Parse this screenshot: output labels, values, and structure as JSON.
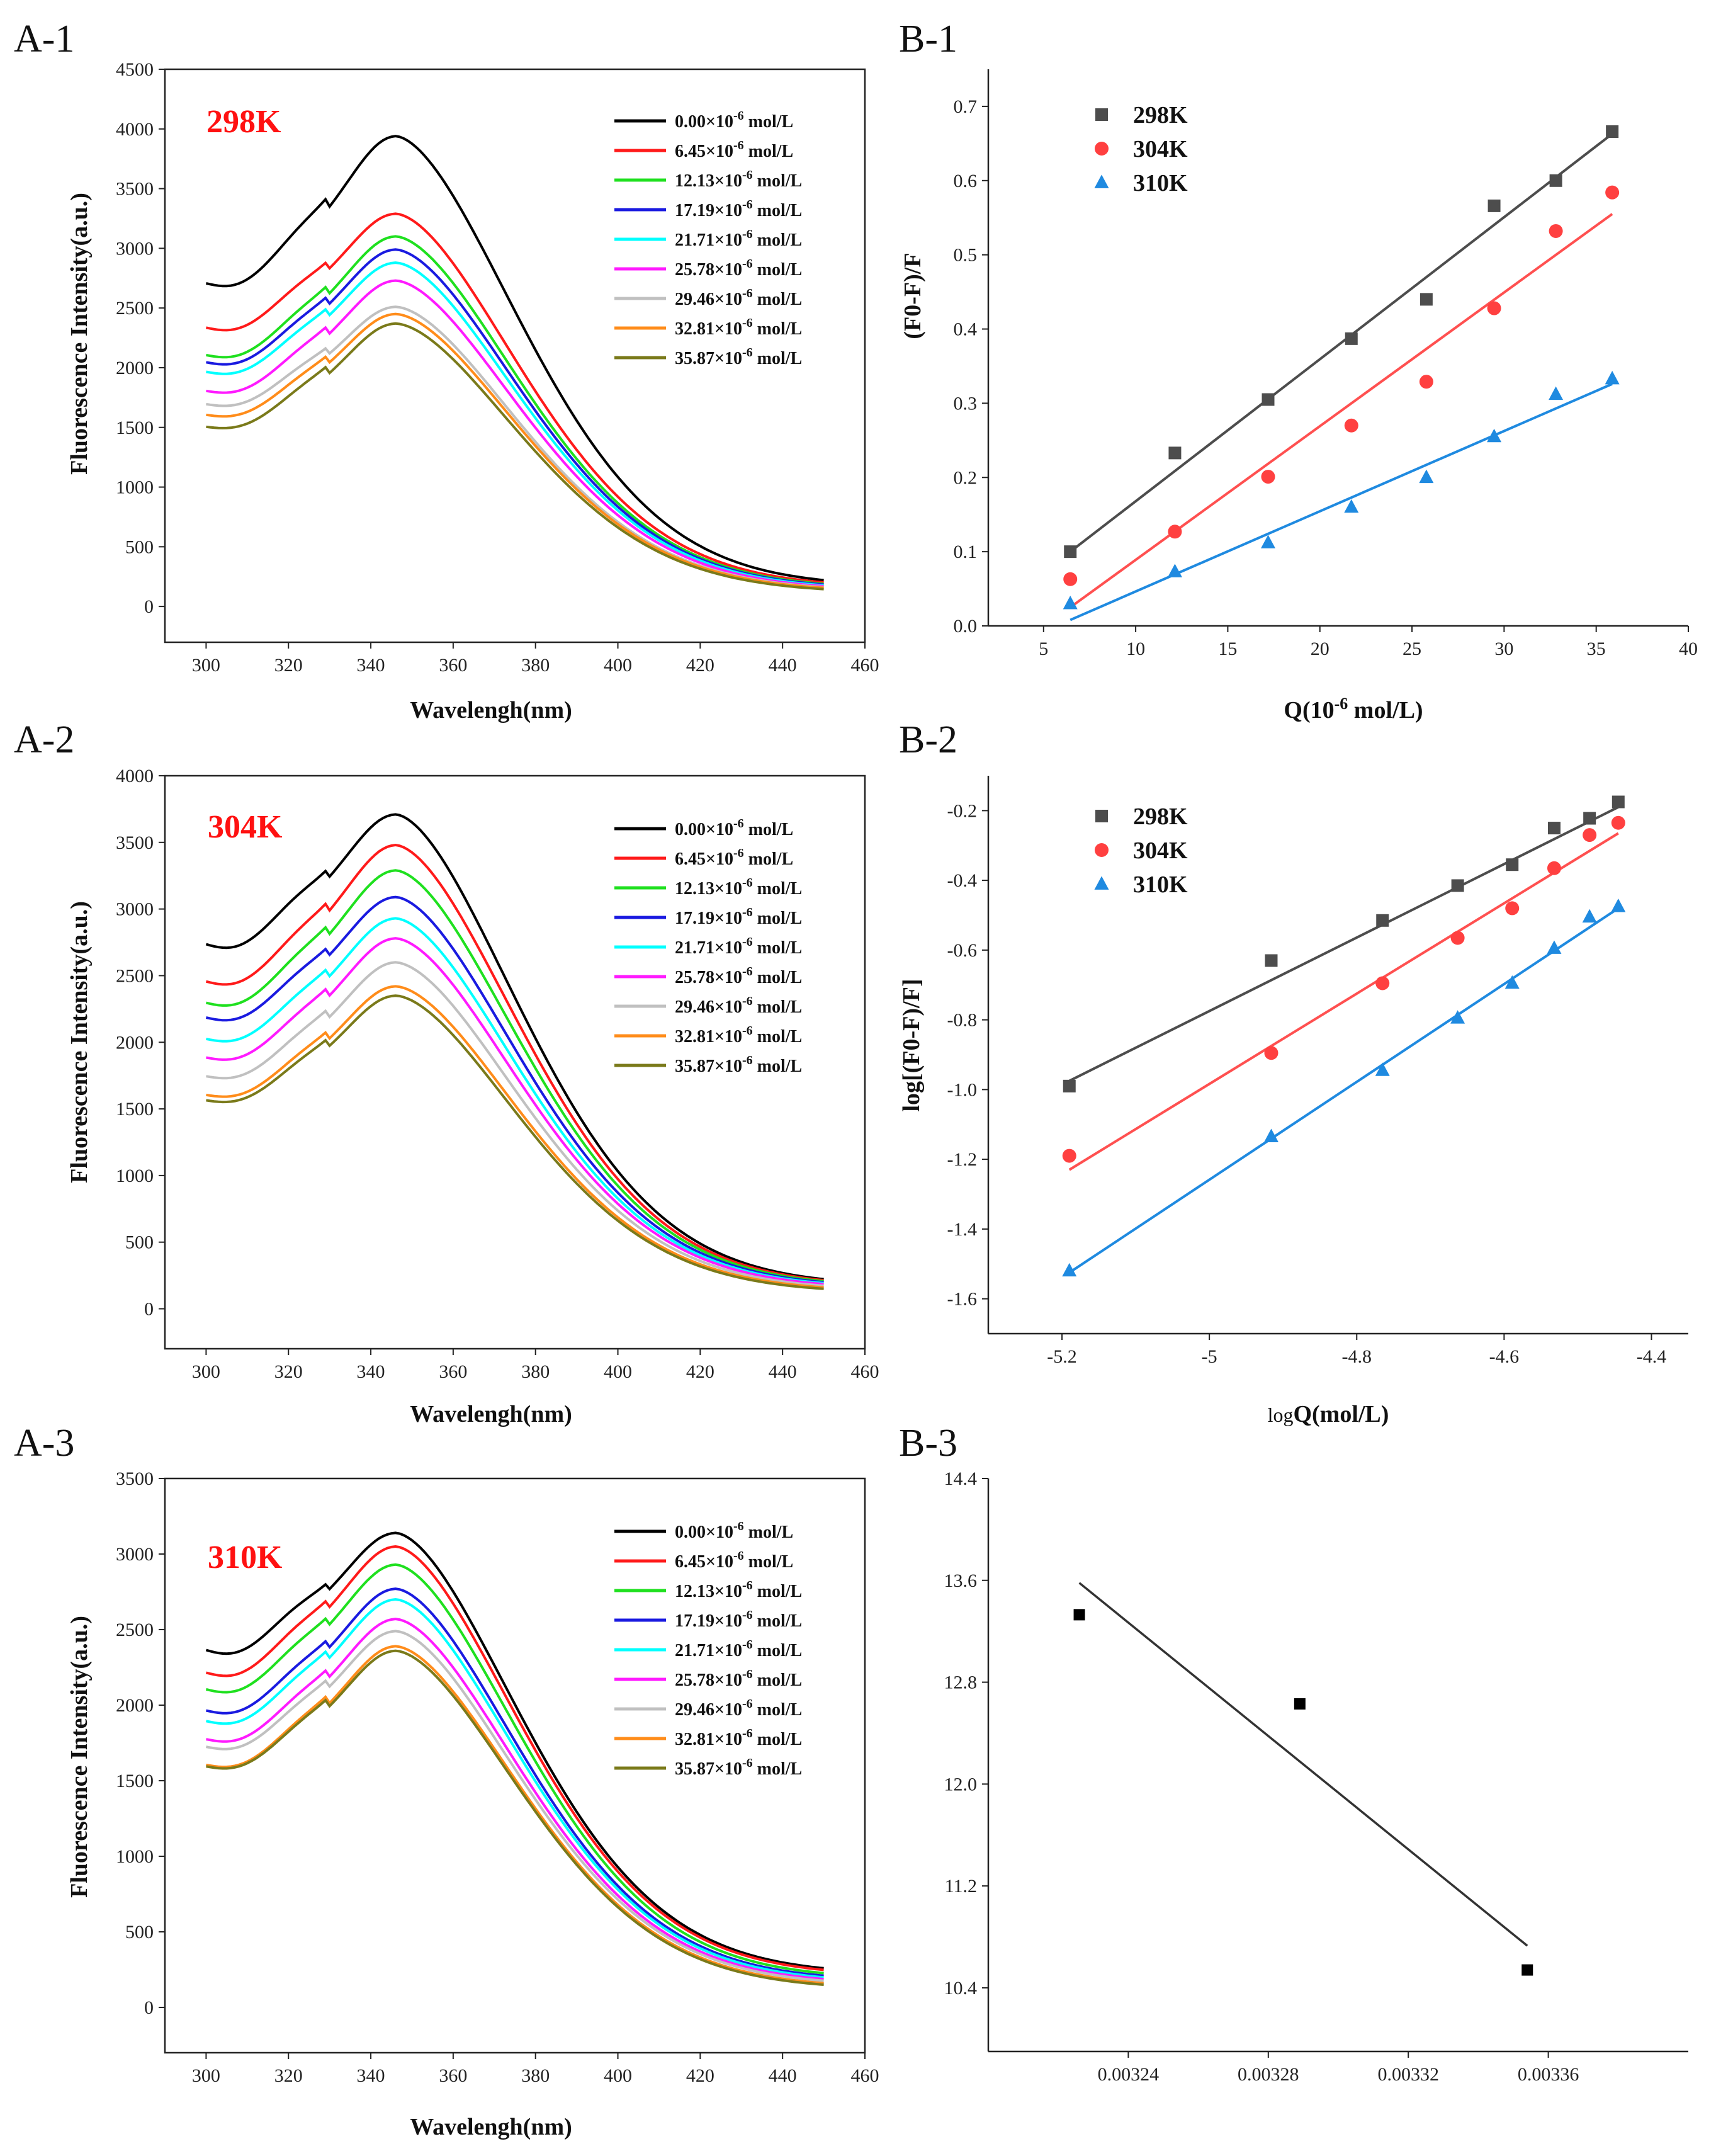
{
  "colors": {
    "conc": [
      "#000000",
      "#ff1a1a",
      "#1fe01f",
      "#1a1ae0",
      "#00ffff",
      "#ff1aff",
      "#c0c0c0",
      "#ff8c1a",
      "#7a7a1a"
    ],
    "temps": [
      "#4d4d4d",
      "#ff4040",
      "#1f8ae0"
    ],
    "fit": [
      "#4d4d4d",
      "#ff5050",
      "#1f8ae0"
    ],
    "b3": "#333333",
    "temp_label": "#ff1111"
  },
  "concentration_legend": [
    "0.00×10",
    "6.45×10",
    "12.13×10",
    "17.19×10",
    "21.71×10",
    "25.78×10",
    "29.46×10",
    "32.81×10",
    "35.87×10"
  ],
  "legend_exponent": "-6",
  "legend_unit": " mol/L",
  "temperature_legend": [
    "298K",
    "304K",
    "310K"
  ],
  "chart_data": [
    {
      "id": "A-1",
      "panel_label": "A-1",
      "type": "line",
      "temperature_label": "298K",
      "xlabel": "Wavelengh(nm)",
      "ylabel": "Fluorescence Intensity(a.u.)",
      "xlim": [
        290,
        460
      ],
      "ylim": [
        -300,
        4500
      ],
      "xticks": [
        300,
        320,
        340,
        360,
        380,
        400,
        420,
        440,
        460
      ],
      "yticks": [
        0,
        500,
        1000,
        1500,
        2000,
        2500,
        3000,
        3500,
        4000,
        4500
      ],
      "x_range": [
        300,
        450
      ],
      "series_start": [
        2700,
        2330,
        2100,
        2040,
        1960,
        1800,
        1690,
        1600,
        1500
      ],
      "series_peak": [
        3940,
        3290,
        3100,
        2990,
        2880,
        2730,
        2510,
        2450,
        2370
      ],
      "series_end": [
        170,
        160,
        150,
        145,
        140,
        135,
        130,
        125,
        115
      ]
    },
    {
      "id": "A-2",
      "panel_label": "A-2",
      "type": "line",
      "temperature_label": "304K",
      "xlabel": "Wavelengh(nm)",
      "ylabel": "Fluorescence Intensity(a.u.)",
      "xlim": [
        290,
        460
      ],
      "ylim": [
        -300,
        4000
      ],
      "xticks": [
        300,
        320,
        340,
        360,
        380,
        400,
        420,
        440,
        460
      ],
      "yticks": [
        0,
        500,
        1000,
        1500,
        2000,
        2500,
        3000,
        3500,
        4000
      ],
      "x_range": [
        300,
        450
      ],
      "series_start": [
        2730,
        2450,
        2290,
        2180,
        2020,
        1880,
        1740,
        1600,
        1560
      ],
      "series_peak": [
        3710,
        3480,
        3290,
        3090,
        2930,
        2780,
        2600,
        2420,
        2350
      ],
      "series_end": [
        175,
        170,
        165,
        160,
        155,
        150,
        140,
        130,
        120
      ]
    },
    {
      "id": "A-3",
      "panel_label": "A-3",
      "type": "line",
      "temperature_label": "310K",
      "xlabel": "Wavelengh(nm)",
      "ylabel": "Fluorescence Intensity(a.u.)",
      "xlim": [
        290,
        460
      ],
      "ylim": [
        -300,
        3500
      ],
      "xticks": [
        300,
        320,
        340,
        360,
        380,
        400,
        420,
        440,
        460
      ],
      "yticks": [
        0,
        500,
        1000,
        1500,
        2000,
        2500,
        3000,
        3500
      ],
      "x_range": [
        300,
        450
      ],
      "series_start": [
        2360,
        2210,
        2100,
        1960,
        1890,
        1770,
        1720,
        1600,
        1590
      ],
      "series_peak": [
        3140,
        3050,
        2930,
        2770,
        2700,
        2570,
        2490,
        2390,
        2360
      ],
      "series_end": [
        220,
        210,
        190,
        175,
        165,
        155,
        145,
        130,
        120
      ]
    },
    {
      "id": "B-1",
      "panel_label": "B-1",
      "type": "scatter",
      "xlabel_main": "Q(10",
      "xlabel_sup": "-6",
      "xlabel_tail": " mol/L)",
      "ylabel": "(F0-F)/F",
      "xlim": [
        2,
        40
      ],
      "ylim": [
        0,
        0.75
      ],
      "xticks": [
        5,
        10,
        15,
        20,
        25,
        30,
        35,
        40
      ],
      "yticks": [
        0.0,
        0.1,
        0.2,
        0.3,
        0.4,
        0.5,
        0.6,
        0.7
      ],
      "tick_decimals": 1,
      "x": [
        6.45,
        12.13,
        17.19,
        21.71,
        25.78,
        29.46,
        32.81,
        35.87
      ],
      "series": [
        {
          "name": "298K",
          "marker": "square",
          "values": [
            0.1,
            0.233,
            0.305,
            0.387,
            0.44,
            0.566,
            0.6,
            0.666
          ],
          "fit": [
            [
              6.45,
              0.1
            ],
            [
              35.87,
              0.663
            ]
          ]
        },
        {
          "name": "304K",
          "marker": "circle",
          "values": [
            0.063,
            0.127,
            0.201,
            0.27,
            0.329,
            0.428,
            0.532,
            0.584
          ],
          "fit": [
            [
              6.45,
              0.025
            ],
            [
              35.87,
              0.555
            ]
          ]
        },
        {
          "name": "310K",
          "marker": "triangle",
          "values": [
            0.03,
            0.073,
            0.112,
            0.16,
            0.2,
            0.255,
            0.312,
            0.333
          ],
          "fit": [
            [
              6.45,
              0.008
            ],
            [
              35.87,
              0.326
            ]
          ]
        }
      ]
    },
    {
      "id": "B-2",
      "panel_label": "B-2",
      "type": "scatter",
      "xlabel_prefix": "log",
      "xlabel_main": "Q(mol/L)",
      "ylabel": "log[(F0-F)/F]",
      "xlim": [
        -5.3,
        -4.35
      ],
      "ylim": [
        -1.7,
        -0.1
      ],
      "xticks": [
        -5.2,
        -5.0,
        -4.8,
        -4.6,
        -4.4
      ],
      "yticks": [
        -1.6,
        -1.4,
        -1.2,
        -1.0,
        -0.8,
        -0.6,
        -0.4,
        -0.2
      ],
      "tick_decimals": 1,
      "x": [
        -5.19,
        -4.916,
        -4.765,
        -4.663,
        -4.589,
        -4.532,
        -4.484,
        -4.445
      ],
      "series": [
        {
          "name": "298K",
          "marker": "square",
          "values": [
            -0.99,
            -0.63,
            -0.515,
            -0.415,
            -0.355,
            -0.25,
            -0.222,
            -0.175
          ],
          "fit": [
            [
              -5.19,
              -0.975
            ],
            [
              -4.445,
              -0.19
            ]
          ]
        },
        {
          "name": "304K",
          "marker": "circle",
          "values": [
            -1.19,
            -0.895,
            -0.695,
            -0.565,
            -0.48,
            -0.365,
            -0.27,
            -0.235
          ],
          "fit": [
            [
              -5.19,
              -1.23
            ],
            [
              -4.445,
              -0.265
            ]
          ]
        },
        {
          "name": "310K",
          "marker": "triangle",
          "values": [
            -1.52,
            -1.135,
            -0.945,
            -0.795,
            -0.695,
            -0.595,
            -0.505,
            -0.475
          ],
          "fit": [
            [
              -5.19,
              -1.525
            ],
            [
              -4.445,
              -0.48
            ]
          ]
        }
      ]
    },
    {
      "id": "B-3",
      "panel_label": "B-3",
      "type": "scatter",
      "xlim": [
        0.0032,
        0.0034
      ],
      "ylim": [
        9.9,
        14.4
      ],
      "xticks": [
        0.00324,
        0.00328,
        0.00332,
        0.00336
      ],
      "yticks": [
        10.4,
        11.2,
        12.0,
        12.8,
        13.6,
        14.4
      ],
      "tick_decimals_x": 5,
      "tick_decimals_y": 1,
      "x": [
        0.003226,
        0.003289,
        0.003354
      ],
      "series": [
        {
          "name": "",
          "marker": "square",
          "values": [
            13.33,
            12.63,
            10.54
          ],
          "fit": [
            [
              0.003226,
              13.58
            ],
            [
              0.003354,
              10.73
            ]
          ]
        }
      ]
    }
  ]
}
